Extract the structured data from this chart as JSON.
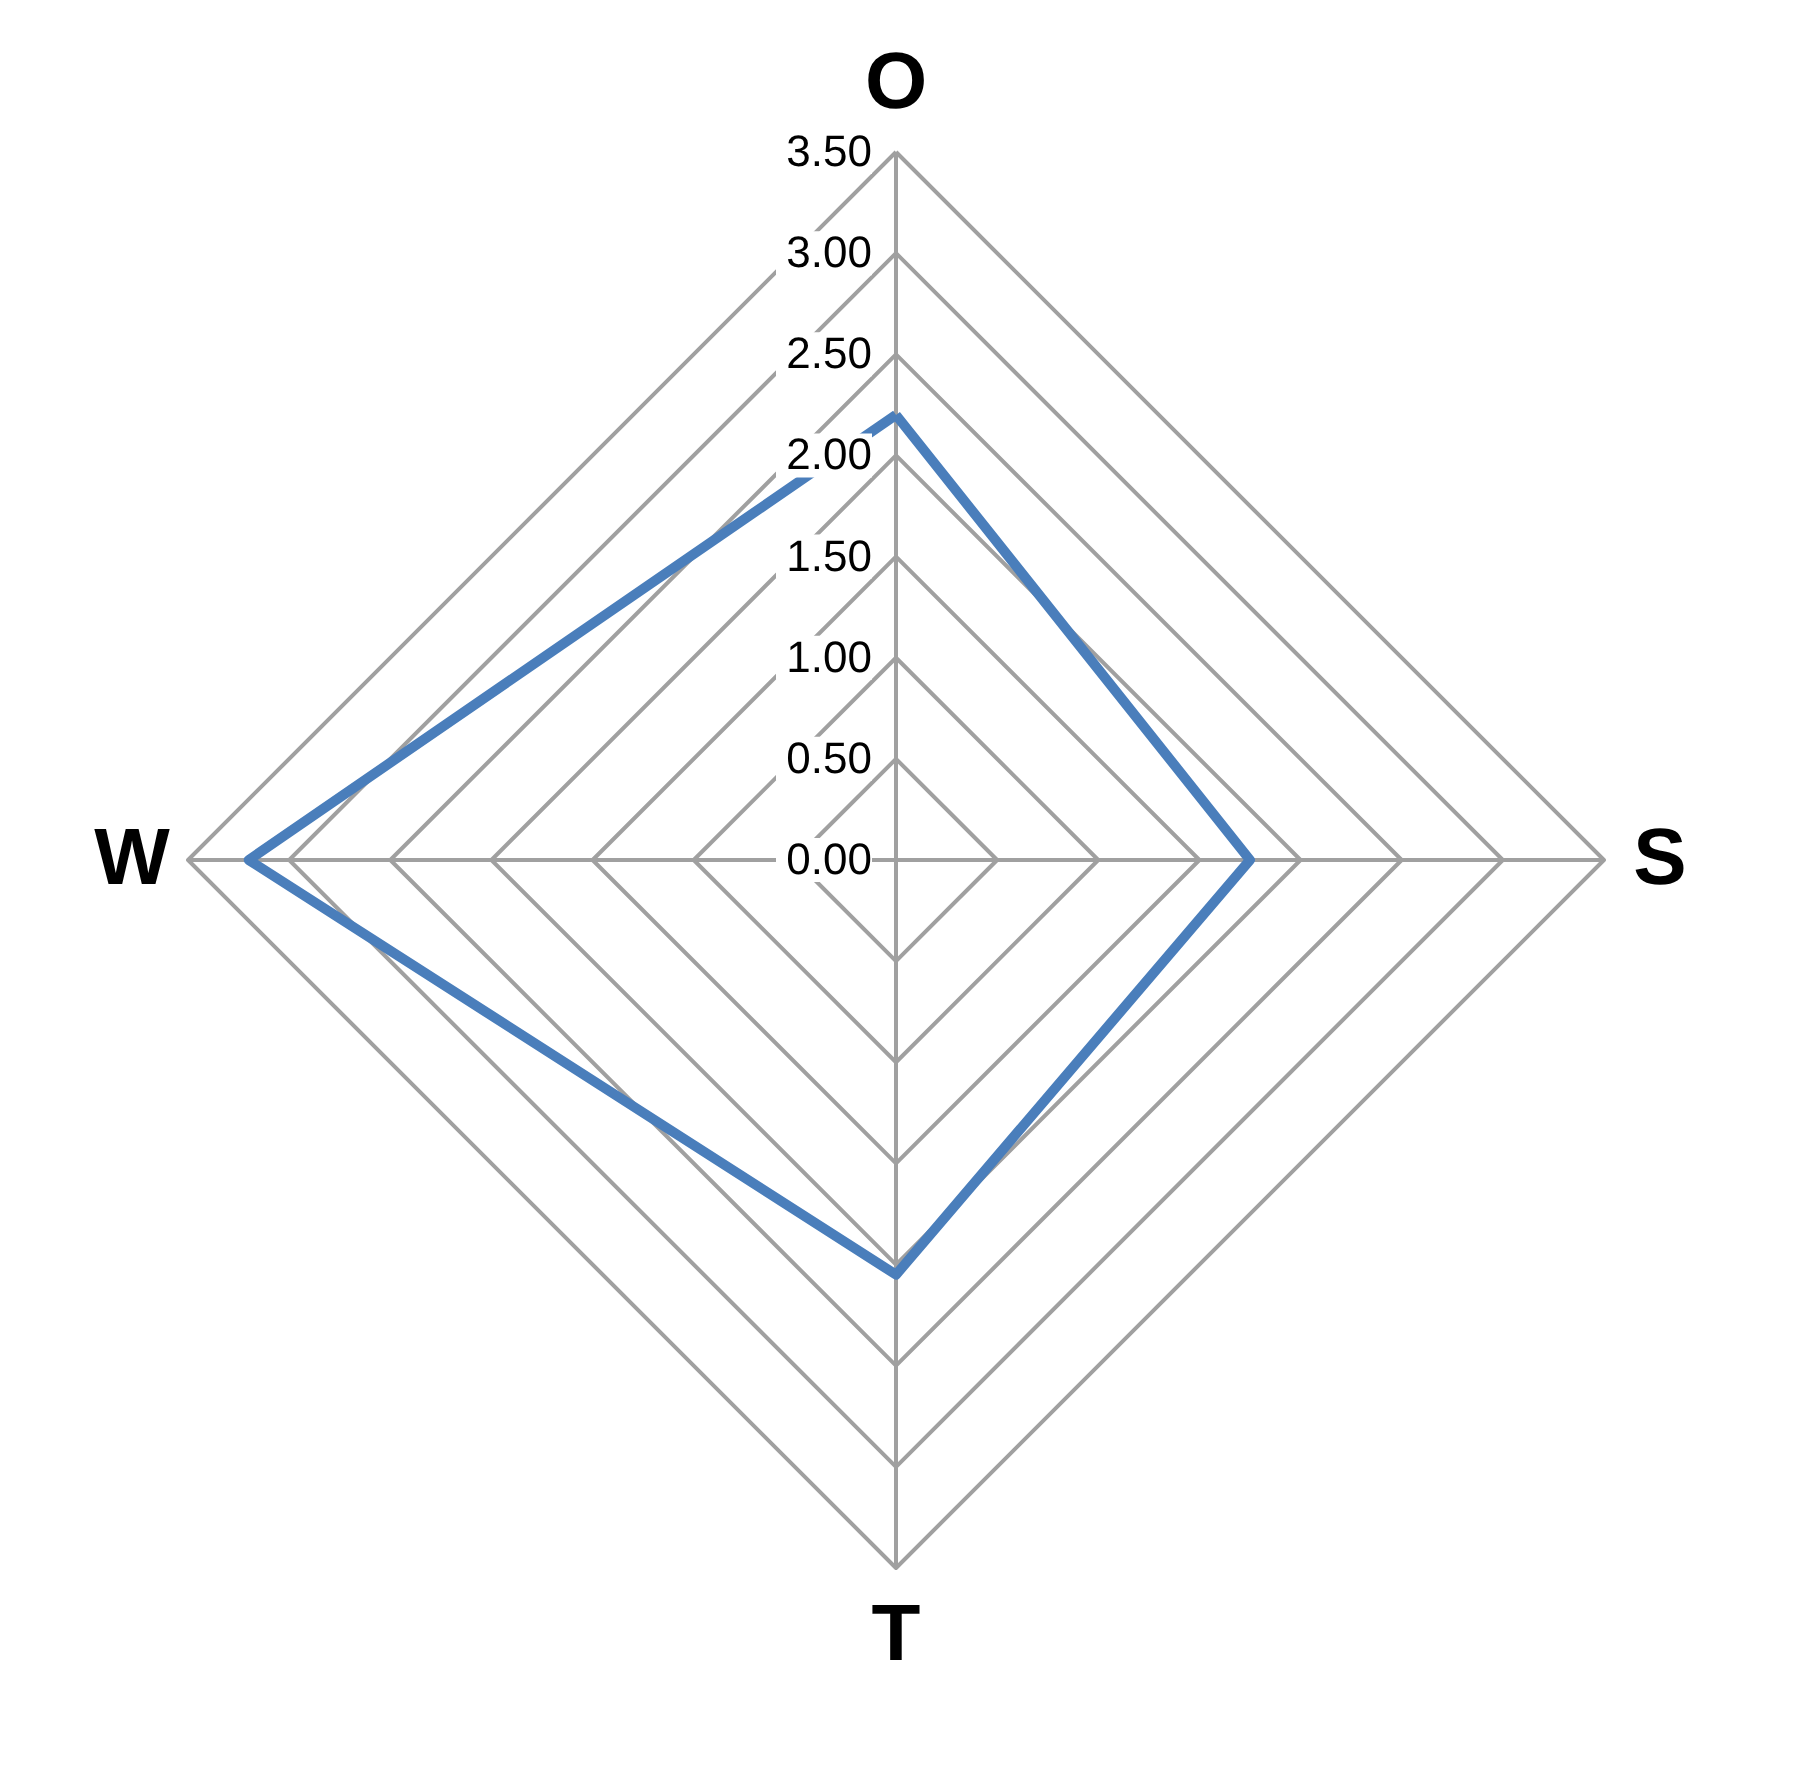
{
  "chart_data": {
    "type": "radar",
    "categories": [
      "O",
      "S",
      "T",
      "W"
    ],
    "series": [
      {
        "color": "#4a7ebb",
        "values": [
          2.2,
          1.75,
          2.05,
          3.2
        ]
      }
    ],
    "ylim": [
      0,
      3.5
    ],
    "yticks": [
      {
        "value": 0,
        "label": "0.00"
      },
      {
        "value": 0.5,
        "label": "0.50"
      },
      {
        "value": 1,
        "label": "1.00"
      },
      {
        "value": 1.5,
        "label": "1.50"
      },
      {
        "value": 2,
        "label": "2.00"
      },
      {
        "value": 2.5,
        "label": "2.50"
      },
      {
        "value": 3,
        "label": "3.00"
      },
      {
        "value": 3.5,
        "label": "3.50"
      }
    ],
    "grid": true
  }
}
